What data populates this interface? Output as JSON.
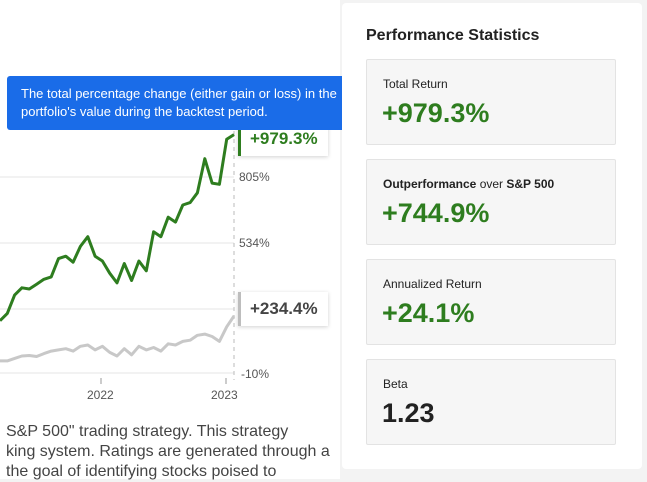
{
  "chart": {
    "y_tick_labels": [
      "805%",
      "534%",
      "-10%"
    ],
    "x_tick_labels": [
      "2022",
      "2023"
    ],
    "end_labels": {
      "portfolio": "+979.3%",
      "benchmark": "+234.4%"
    },
    "colors": {
      "portfolio": "#2e7d1f",
      "benchmark": "#c8c8c8",
      "grid": "#e6e6e6"
    }
  },
  "chart_data": {
    "type": "line",
    "x_ticks": [
      "2022",
      "2023"
    ],
    "y_ticks": [
      "805%",
      "534%",
      "-10%"
    ],
    "series": [
      {
        "values": [
          215,
          245,
          320,
          350,
          345,
          365,
          385,
          395,
          470,
          480,
          455,
          520,
          560,
          480,
          460,
          410,
          370,
          450,
          380,
          460,
          420,
          580,
          560,
          640,
          620,
          690,
          700,
          740,
          880,
          780,
          775,
          960,
          979.3
        ]
      },
      {
        "values": [
          50,
          50,
          60,
          70,
          72,
          68,
          80,
          90,
          95,
          100,
          90,
          110,
          115,
          95,
          110,
          85,
          70,
          100,
          75,
          110,
          95,
          105,
          90,
          120,
          115,
          130,
          135,
          155,
          160,
          150,
          130,
          190,
          234.4
        ]
      }
    ]
  },
  "description": {
    "lines": [
      "S&P 500\" trading strategy. This strategy",
      "king system. Ratings are generated through a",
      "the goal of identifying stocks poised to"
    ]
  },
  "tooltip": {
    "line1": "The total percentage change (either gain or loss) in the",
    "line2": "portfolio's value during the backtest period."
  },
  "stats": {
    "title": "Performance Statistics",
    "total_return": {
      "label": "Total Return",
      "value": "+979.3%"
    },
    "outperformance": {
      "label_bold1": "Outperformance",
      "label_mid": " over ",
      "label_bold2": "S&P 500",
      "value": "+744.9%"
    },
    "annualized": {
      "label": "Annualized Return",
      "value": "+24.1%"
    },
    "beta": {
      "label": "Beta",
      "value": "1.23"
    }
  }
}
